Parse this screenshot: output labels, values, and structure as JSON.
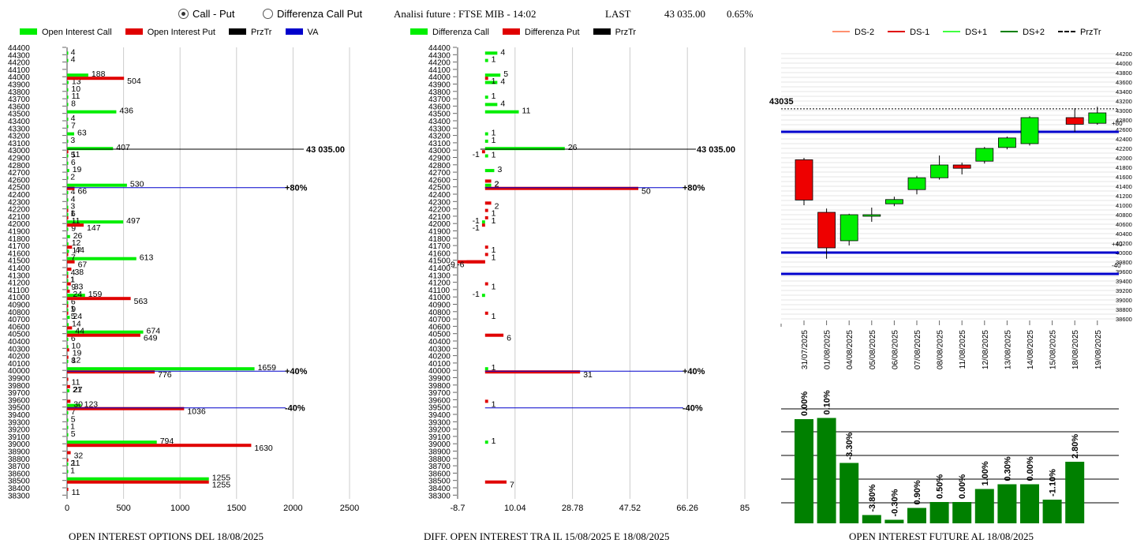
{
  "header": {
    "radio_call_put": "Call - Put",
    "radio_diff": "Differenza Call Put",
    "title": "Analisi future : FTSE MIB - 14:02",
    "last_label": "LAST",
    "last_value": "43 035.00",
    "change": "0.65%"
  },
  "colors": {
    "green": "#00ee00",
    "red": "#e00000",
    "black": "#000000",
    "blue": "#0000cc",
    "dark_green": "#008000"
  },
  "captions": {
    "left": "OPEN INTEREST OPTIONS DEL 18/08/2025",
    "mid": "DIFF. OPEN INTEREST TRA IL 15/08/2025 E 18/08/2025",
    "right": "OPEN INTEREST FUTURE AL 18/08/2025"
  },
  "chart_data": [
    {
      "type": "bar",
      "legend": [
        "Open Interest Call",
        "Open Interest Put",
        "PrzTr",
        "VA"
      ],
      "strikes": [
        44400,
        44300,
        44200,
        44100,
        44000,
        43900,
        43800,
        43700,
        43600,
        43500,
        43400,
        43300,
        43200,
        43100,
        43000,
        42900,
        42800,
        42700,
        42600,
        42500,
        42400,
        42300,
        42200,
        42100,
        42000,
        41900,
        41800,
        41700,
        41600,
        41500,
        41400,
        41300,
        41200,
        41100,
        41000,
        40900,
        40800,
        40700,
        40600,
        40500,
        40400,
        40300,
        40200,
        40100,
        40000,
        39900,
        39800,
        39700,
        39600,
        39500,
        39400,
        39300,
        39200,
        39100,
        39000,
        38900,
        38800,
        38700,
        38600,
        38500,
        38400,
        38300
      ],
      "calls": [
        {
          "strike": 44300,
          "value": 4
        },
        {
          "strike": 44200,
          "value": 4
        },
        {
          "strike": 44000,
          "value": 188
        },
        {
          "strike": 43900,
          "value": 13
        },
        {
          "strike": 43800,
          "value": 10
        },
        {
          "strike": 43700,
          "value": 11
        },
        {
          "strike": 43600,
          "value": 8
        },
        {
          "strike": 43500,
          "value": 436
        },
        {
          "strike": 43400,
          "value": 4
        },
        {
          "strike": 43300,
          "value": 7
        },
        {
          "strike": 43200,
          "value": 63
        },
        {
          "strike": 43100,
          "value": 3
        },
        {
          "strike": 43000,
          "value": 407
        },
        {
          "strike": 42900,
          "value": 5
        },
        {
          "strike": 42800,
          "value": 6
        },
        {
          "strike": 42700,
          "value": 19
        },
        {
          "strike": 42600,
          "value": 2
        },
        {
          "strike": 42500,
          "value": 530
        },
        {
          "strike": 42400,
          "value": 4
        },
        {
          "strike": 42300,
          "value": 4
        },
        {
          "strike": 42200,
          "value": 3
        },
        {
          "strike": 42100,
          "value": 6
        },
        {
          "strike": 42000,
          "value": 497
        },
        {
          "strike": 41900,
          "value": 9
        },
        {
          "strike": 41800,
          "value": 26
        },
        {
          "strike": 41700,
          "value": 12
        },
        {
          "strike": 41600,
          "value": 17
        },
        {
          "strike": 41500,
          "value": 613
        },
        {
          "strike": 41300,
          "value": 4
        },
        {
          "strike": 41200,
          "value": 1
        },
        {
          "strike": 41100,
          "value": 9
        },
        {
          "strike": 41000,
          "value": 159
        },
        {
          "strike": 40900,
          "value": 6
        },
        {
          "strike": 40800,
          "value": 9
        },
        {
          "strike": 40700,
          "value": 24
        },
        {
          "strike": 40600,
          "value": 14
        },
        {
          "strike": 40500,
          "value": 674
        },
        {
          "strike": 40400,
          "value": 6
        },
        {
          "strike": 40300,
          "value": 10
        },
        {
          "strike": 40100,
          "value": 8
        },
        {
          "strike": 40000,
          "value": 1659
        },
        {
          "strike": 39700,
          "value": 21
        },
        {
          "strike": 39500,
          "value": 123
        },
        {
          "strike": 39400,
          "value": 7
        },
        {
          "strike": 39300,
          "value": 5
        },
        {
          "strike": 39200,
          "value": 1
        },
        {
          "strike": 39100,
          "value": 5
        },
        {
          "strike": 39000,
          "value": 794
        },
        {
          "strike": 38700,
          "value": 2
        },
        {
          "strike": 38600,
          "value": 1
        },
        {
          "strike": 38500,
          "value": 1255
        }
      ],
      "puts": [
        {
          "strike": 44000,
          "value": 504
        },
        {
          "strike": 43000,
          "value": 11
        },
        {
          "strike": 42500,
          "value": 66
        },
        {
          "strike": 42200,
          "value": 1
        },
        {
          "strike": 42100,
          "value": 11
        },
        {
          "strike": 42000,
          "value": 147
        },
        {
          "strike": 41700,
          "value": 44
        },
        {
          "strike": 41600,
          "value": 7
        },
        {
          "strike": 41500,
          "value": 67
        },
        {
          "strike": 41400,
          "value": 38
        },
        {
          "strike": 41300,
          "value": 1
        },
        {
          "strike": 41200,
          "value": 33
        },
        {
          "strike": 41100,
          "value": 24
        },
        {
          "strike": 41000,
          "value": 563
        },
        {
          "strike": 40900,
          "value": 1
        },
        {
          "strike": 40800,
          "value": 5
        },
        {
          "strike": 40600,
          "value": 44
        },
        {
          "strike": 40500,
          "value": 649
        },
        {
          "strike": 40300,
          "value": 19
        },
        {
          "strike": 40200,
          "value": 12
        },
        {
          "strike": 40000,
          "value": 776
        },
        {
          "strike": 39900,
          "value": 11
        },
        {
          "strike": 39800,
          "value": 27
        },
        {
          "strike": 39600,
          "value": 30
        },
        {
          "strike": 39500,
          "value": 1036
        },
        {
          "strike": 38900,
          "value": 32
        },
        {
          "strike": 38800,
          "value": 11
        },
        {
          "strike": 38500,
          "value": 1255
        },
        {
          "strike": 38400,
          "value": 11
        },
        {
          "strike": 39000,
          "value": 1630
        }
      ],
      "price_line": {
        "strike": 43035,
        "label": "43 035.00"
      },
      "va_lines": [
        {
          "strike": 42500,
          "label": "+80%"
        },
        {
          "strike": 40000,
          "label": "+40%"
        },
        {
          "strike": 39500,
          "label": "-40%"
        }
      ],
      "x_ticks": [
        0,
        500,
        1000,
        1500,
        2000,
        2500
      ],
      "xlim": [
        0,
        2800
      ]
    },
    {
      "type": "bar",
      "legend": [
        "Differenza Call",
        "Differenza Put",
        "PrzTr"
      ],
      "calls": [
        {
          "strike": 44300,
          "value": 4
        },
        {
          "strike": 44200,
          "value": 1
        },
        {
          "strike": 44000,
          "value": 5
        },
        {
          "strike": 43900,
          "value": 4
        },
        {
          "strike": 43700,
          "value": 1
        },
        {
          "strike": 43600,
          "value": 4
        },
        {
          "strike": 43500,
          "value": 11
        },
        {
          "strike": 43200,
          "value": 1
        },
        {
          "strike": 43100,
          "value": 1
        },
        {
          "strike": 43000,
          "value": 26
        },
        {
          "strike": 42900,
          "value": 1
        },
        {
          "strike": 42700,
          "value": 3
        },
        {
          "strike": 42500,
          "value": 2
        },
        {
          "strike": 42000,
          "value": -1
        },
        {
          "strike": 41000,
          "value": -1
        },
        {
          "strike": 40000,
          "value": 1
        },
        {
          "strike": 39000,
          "value": 1
        }
      ],
      "puts": [
        {
          "strike": 44000,
          "value": 1
        },
        {
          "strike": 43000,
          "value": -1
        },
        {
          "strike": 42600,
          "value": 2
        },
        {
          "strike": 42500,
          "value": 50
        },
        {
          "strike": 42300,
          "value": 2
        },
        {
          "strike": 42200,
          "value": 1
        },
        {
          "strike": 42100,
          "value": 1
        },
        {
          "strike": 42000,
          "value": -1
        },
        {
          "strike": 41700,
          "value": 1
        },
        {
          "strike": 41600,
          "value": 1
        },
        {
          "strike": 41500,
          "value": -9
        },
        {
          "strike": 41500,
          "value": -6
        },
        {
          "strike": 41200,
          "value": 1
        },
        {
          "strike": 40800,
          "value": 1
        },
        {
          "strike": 40500,
          "value": 6
        },
        {
          "strike": 40000,
          "value": 31
        },
        {
          "strike": 39600,
          "value": 1
        },
        {
          "strike": 38500,
          "value": 7
        }
      ],
      "x_ticks": [
        "-8.7",
        "10.04",
        "28.78",
        "47.52",
        "66.26",
        "85"
      ],
      "xlim": [
        -8.7,
        85
      ],
      "price_line": {
        "strike": 43035,
        "label": "43 035.00"
      },
      "va_lines": [
        {
          "strike": 42500,
          "label": "+80%"
        },
        {
          "strike": 40000,
          "label": "+40%"
        },
        {
          "strike": 39500,
          "label": "-40%"
        }
      ]
    },
    {
      "type": "candlestick",
      "legend": [
        "DS-2",
        "DS-1",
        "DS+1",
        "DS+2",
        "PrzTr"
      ],
      "dates": [
        "31/07/2025",
        "01/08/2025",
        "04/08/2025",
        "05/08/2025",
        "06/08/2025",
        "07/08/2025",
        "08/08/2025",
        "11/08/2025",
        "12/08/2025",
        "13/08/2025",
        "14/08/2025",
        "15/08/2025",
        "18/08/2025",
        "19/08/2025"
      ],
      "candles": [
        {
          "date": "31/07/2025",
          "open": 41960,
          "close": 41110,
          "high": 42000,
          "low": 41000
        },
        {
          "date": "01/08/2025",
          "open": 40850,
          "close": 40100,
          "high": 40930,
          "low": 39870
        },
        {
          "date": "04/08/2025",
          "open": 40250,
          "close": 40800,
          "high": 40820,
          "low": 40150
        },
        {
          "date": "05/08/2025",
          "open": 40800,
          "close": 40800,
          "high": 40950,
          "low": 40650
        },
        {
          "date": "06/08/2025",
          "open": 41030,
          "close": 41120,
          "high": 41180,
          "low": 40980
        },
        {
          "date": "07/08/2025",
          "open": 41330,
          "close": 41580,
          "high": 41620,
          "low": 41230
        },
        {
          "date": "08/08/2025",
          "open": 41580,
          "close": 41850,
          "high": 42050,
          "low": 41540
        },
        {
          "date": "11/08/2025",
          "open": 41850,
          "close": 41780,
          "high": 41900,
          "low": 41650
        },
        {
          "date": "12/08/2025",
          "open": 41930,
          "close": 42200,
          "high": 42230,
          "low": 41880
        },
        {
          "date": "13/08/2025",
          "open": 42220,
          "close": 42420,
          "high": 42450,
          "low": 42180
        },
        {
          "date": "14/08/2025",
          "open": 42300,
          "close": 42850,
          "high": 42880,
          "low": 42260
        },
        {
          "date": "18/08/2025",
          "open": 42850,
          "close": 42710,
          "high": 43050,
          "low": 42550
        },
        {
          "date": "19/08/2025",
          "open": 42730,
          "close": 42950,
          "high": 43080,
          "low": 42700
        }
      ],
      "price_line": {
        "value": 43035,
        "label": "43035"
      },
      "levels": [
        {
          "value": 42550,
          "label": "+80"
        },
        {
          "value": 40000,
          "label": "+40"
        },
        {
          "value": 39550,
          "label": "-40"
        }
      ],
      "y_ticks": [
        44200,
        44000,
        43800,
        43600,
        43400,
        43200,
        43000,
        42800,
        42600,
        42400,
        42200,
        42000,
        41800,
        41600,
        41400,
        41200,
        41000,
        40800,
        40600,
        40400,
        40200,
        40000,
        39800,
        39600,
        39400,
        39200,
        39000,
        38800,
        38600
      ],
      "ylim": [
        38500,
        44300
      ]
    },
    {
      "type": "bar",
      "values": [
        {
          "date": "31/07/2025",
          "label": "0.00%"
        },
        {
          "date": "01/08/2025",
          "label": "0.10%"
        },
        {
          "date": "04/08/2025",
          "label": "-3.30%"
        },
        {
          "date": "05/08/2025",
          "label": "-3.80%"
        },
        {
          "date": "06/08/2025",
          "label": "-0.30%"
        },
        {
          "date": "07/08/2025",
          "label": "0.90%"
        },
        {
          "date": "08/08/2025",
          "label": "0.50%"
        },
        {
          "date": "11/08/2025",
          "label": "0.00%"
        },
        {
          "date": "12/08/2025",
          "label": "1.00%"
        },
        {
          "date": "13/08/2025",
          "label": "0.30%"
        },
        {
          "date": "14/08/2025",
          "label": "0.00%"
        },
        {
          "date": "15/08/2025",
          "label": "-1.10%"
        },
        {
          "date": "18/08/2025",
          "label": "2.80%"
        }
      ],
      "heights": [
        0.88,
        0.89,
        0.51,
        0.07,
        0.03,
        0.13,
        0.18,
        0.18,
        0.29,
        0.33,
        0.33,
        0.2,
        0.52
      ]
    }
  ]
}
